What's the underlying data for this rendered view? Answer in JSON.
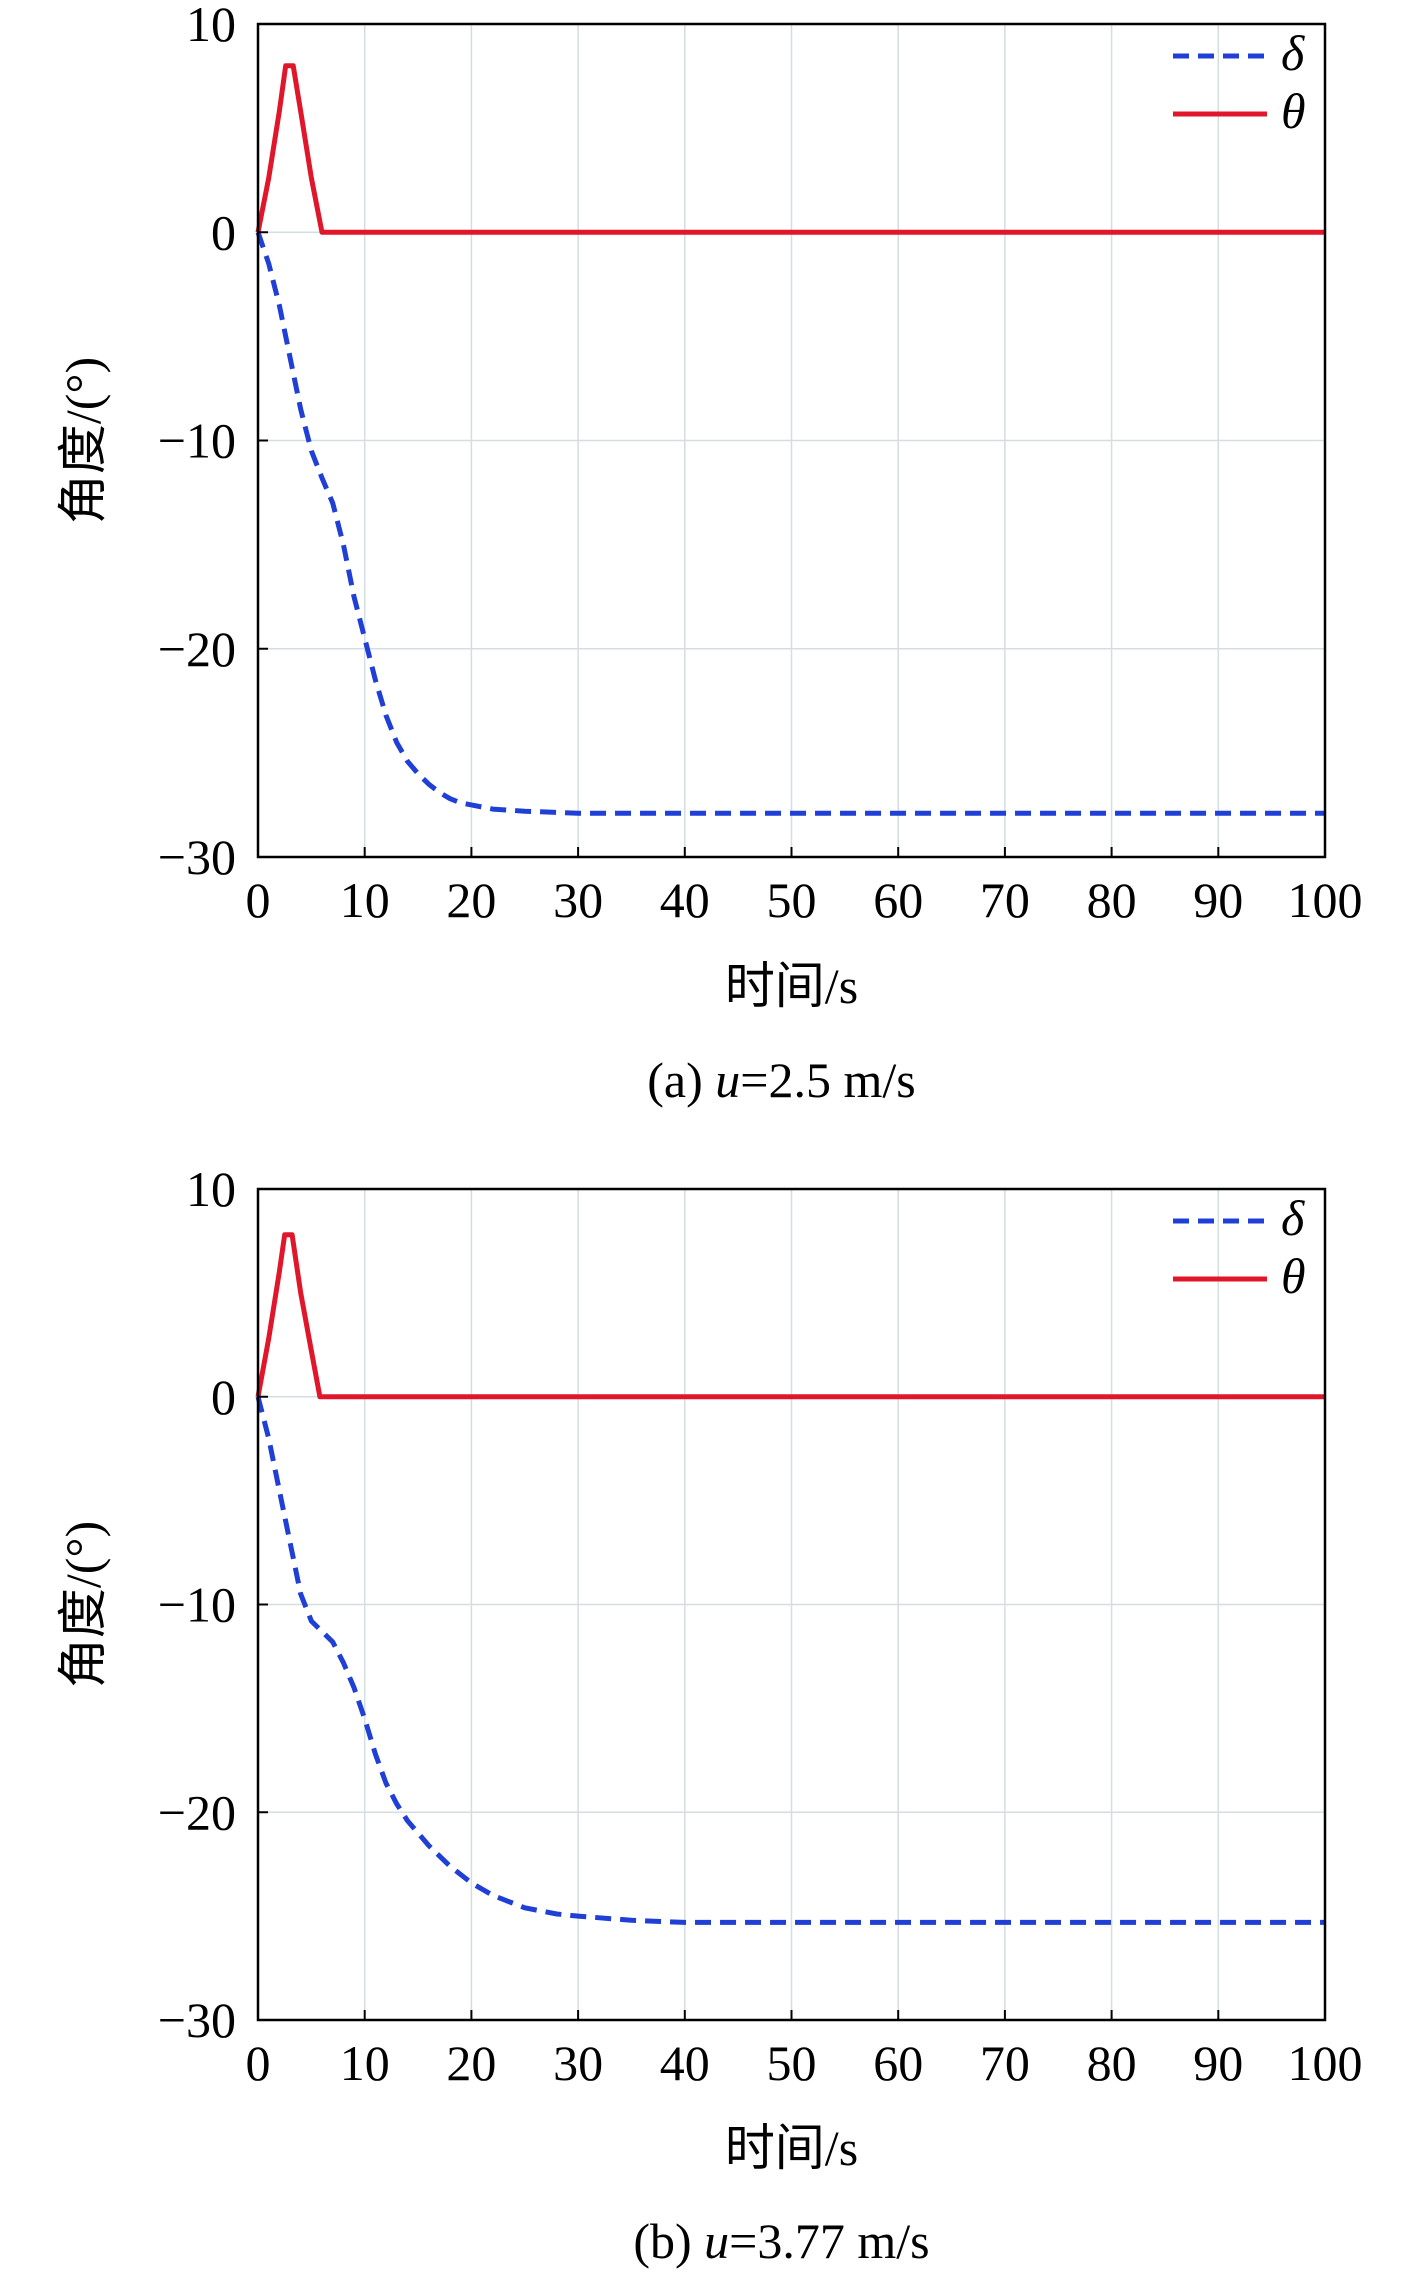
{
  "chart_data": [
    {
      "type": "line",
      "caption_prefix": "(a) ",
      "caption_var": "u",
      "caption_suffix": "=2.5 m/s",
      "xlabel": "时间/s",
      "ylabel": "角度/(°)",
      "xlim": [
        0,
        100
      ],
      "ylim": [
        -30,
        10
      ],
      "xticks": [
        0,
        10,
        20,
        30,
        40,
        50,
        60,
        70,
        80,
        90,
        100
      ],
      "yticks": [
        10,
        0,
        -10,
        -20,
        -30
      ],
      "ytick_labels": [
        "10",
        "0",
        "−10",
        "−20",
        "−30"
      ],
      "grid": true,
      "legend_position": "top-right",
      "series": [
        {
          "name": "δ",
          "style": "dashed",
          "color": "#1f3fd6",
          "x": [
            0,
            1,
            2,
            3,
            4,
            5,
            6,
            7,
            8,
            9,
            10,
            11,
            12,
            13,
            14,
            15,
            16,
            17,
            18,
            19,
            20,
            22,
            25,
            30,
            40,
            50,
            60,
            70,
            80,
            90,
            100
          ],
          "y": [
            0,
            -1.5,
            -3.5,
            -6,
            -8.5,
            -10.5,
            -11.8,
            -13,
            -15,
            -17.5,
            -19.5,
            -21.5,
            -23.2,
            -24.5,
            -25.4,
            -26,
            -26.5,
            -26.9,
            -27.2,
            -27.4,
            -27.5,
            -27.7,
            -27.8,
            -27.9,
            -27.9,
            -27.9,
            -27.9,
            -27.9,
            -27.9,
            -27.9,
            -27.9
          ]
        },
        {
          "name": "θ",
          "style": "solid",
          "color": "#e0162b",
          "x": [
            0,
            1,
            2,
            2.6,
            3.3,
            4,
            5,
            6,
            10,
            20,
            30,
            40,
            50,
            60,
            70,
            80,
            90,
            100
          ],
          "y": [
            0,
            2.6,
            5.8,
            8,
            8,
            5.8,
            2.6,
            0,
            0,
            0,
            0,
            0,
            0,
            0,
            0,
            0,
            0,
            0
          ]
        }
      ]
    },
    {
      "type": "line",
      "caption_prefix": "(b) ",
      "caption_var": "u",
      "caption_suffix": "=3.77 m/s",
      "xlabel": "时间/s",
      "ylabel": "角度/(°)",
      "xlim": [
        0,
        100
      ],
      "ylim": [
        -30,
        10
      ],
      "xticks": [
        0,
        10,
        20,
        30,
        40,
        50,
        60,
        70,
        80,
        90,
        100
      ],
      "yticks": [
        10,
        0,
        -10,
        -20,
        -30
      ],
      "ytick_labels": [
        "10",
        "0",
        "−10",
        "−20",
        "−30"
      ],
      "grid": true,
      "legend_position": "top-right",
      "series": [
        {
          "name": "δ",
          "style": "dashed",
          "color": "#1f3fd6",
          "x": [
            0,
            1,
            2,
            3,
            4,
            5,
            6,
            7,
            8,
            9,
            10,
            11,
            12,
            13,
            14,
            15,
            16,
            18,
            20,
            22,
            25,
            28,
            30,
            35,
            40,
            50,
            60,
            70,
            80,
            90,
            100
          ],
          "y": [
            0,
            -2,
            -4.5,
            -7,
            -9.5,
            -10.8,
            -11.3,
            -11.8,
            -12.8,
            -14,
            -15.5,
            -17.2,
            -18.6,
            -19.6,
            -20.4,
            -21,
            -21.6,
            -22.6,
            -23.4,
            -24,
            -24.6,
            -24.9,
            -25,
            -25.2,
            -25.3,
            -25.3,
            -25.3,
            -25.3,
            -25.3,
            -25.3,
            -25.3
          ]
        },
        {
          "name": "θ",
          "style": "solid",
          "color": "#e0162b",
          "x": [
            0,
            1,
            2,
            2.5,
            3.2,
            4,
            5,
            5.8,
            10,
            20,
            30,
            40,
            50,
            60,
            70,
            80,
            90,
            100
          ],
          "y": [
            0,
            2.8,
            6,
            7.8,
            7.8,
            5,
            2.2,
            0,
            0,
            0,
            0,
            0,
            0,
            0,
            0,
            0,
            0,
            0
          ]
        }
      ]
    }
  ]
}
